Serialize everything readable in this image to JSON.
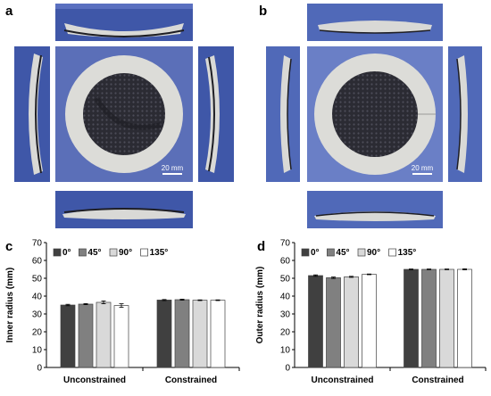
{
  "panels": {
    "a": {
      "letter": "a",
      "scale_bar": "20 mm"
    },
    "b": {
      "letter": "b",
      "scale_bar": "20 mm"
    },
    "c": {
      "letter": "c"
    },
    "d": {
      "letter": "d"
    }
  },
  "colors": {
    "photo_background": "#3f57a8",
    "ring": "#d9d9d6",
    "mesh_dark": "#2b2b33",
    "series": [
      "#404040",
      "#808080",
      "#d9d9d9",
      "#ffffff"
    ]
  },
  "chart_data": [
    {
      "type": "bar",
      "panel": "c",
      "categories": [
        "Unconstrained",
        "Constrained"
      ],
      "series": [
        {
          "name": "0°",
          "values": [
            35.0,
            37.8
          ],
          "errors": [
            0.4,
            0.3
          ]
        },
        {
          "name": "45°",
          "values": [
            35.5,
            38.0
          ],
          "errors": [
            0.3,
            0.3
          ]
        },
        {
          "name": "90°",
          "values": [
            36.5,
            37.7
          ],
          "errors": [
            0.8,
            0.2
          ]
        },
        {
          "name": "135°",
          "values": [
            34.7,
            37.7
          ],
          "errors": [
            1.0,
            0.2
          ]
        }
      ],
      "ylabel": "Inner radius (mm)",
      "ylim": [
        0,
        70
      ],
      "yticks": [
        0,
        10,
        20,
        30,
        40,
        50,
        60,
        70
      ],
      "legend": "top-left",
      "grid": false
    },
    {
      "type": "bar",
      "panel": "d",
      "categories": [
        "Unconstrained",
        "Constrained"
      ],
      "series": [
        {
          "name": "0°",
          "values": [
            51.5,
            55.0
          ],
          "errors": [
            0.4,
            0.2
          ]
        },
        {
          "name": "45°",
          "values": [
            50.3,
            55.0
          ],
          "errors": [
            0.4,
            0.2
          ]
        },
        {
          "name": "90°",
          "values": [
            50.8,
            55.0
          ],
          "errors": [
            0.3,
            0.2
          ]
        },
        {
          "name": "135°",
          "values": [
            52.2,
            55.0
          ],
          "errors": [
            0.2,
            0.3
          ]
        }
      ],
      "ylabel": "Outer radius (mm)",
      "ylim": [
        0,
        70
      ],
      "yticks": [
        0,
        10,
        20,
        30,
        40,
        50,
        60,
        70
      ],
      "legend": "top-left",
      "grid": false
    }
  ]
}
